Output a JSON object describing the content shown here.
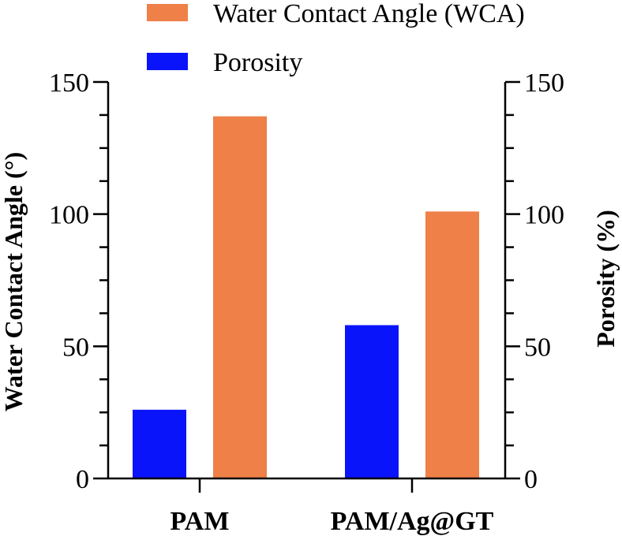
{
  "chart_data": {
    "type": "bar",
    "categories": [
      "PAM",
      "PAM/Ag@GT"
    ],
    "series": [
      {
        "name": "Porosity",
        "axis": "right",
        "color": "#0A14FA",
        "values": [
          26,
          58
        ]
      },
      {
        "name": "Water Contact Angle (WCA)",
        "axis": "left",
        "color": "#EE8048",
        "values": [
          137,
          101
        ]
      }
    ],
    "legend_order": [
      "Water Contact Angle (WCA)",
      "Porosity"
    ],
    "legend_position": "top",
    "ylabel_left": "Water Contact Angle (°)",
    "ylabel_right": "Porosity (%)",
    "ylim_left": [
      0,
      150
    ],
    "ylim_right": [
      0,
      150
    ],
    "yticks_left": [
      "0",
      "50",
      "100",
      "150"
    ],
    "yticks_right": [
      "0",
      "50",
      "100",
      "150"
    ],
    "minor_ticks_per_major": 3,
    "grid": false
  }
}
